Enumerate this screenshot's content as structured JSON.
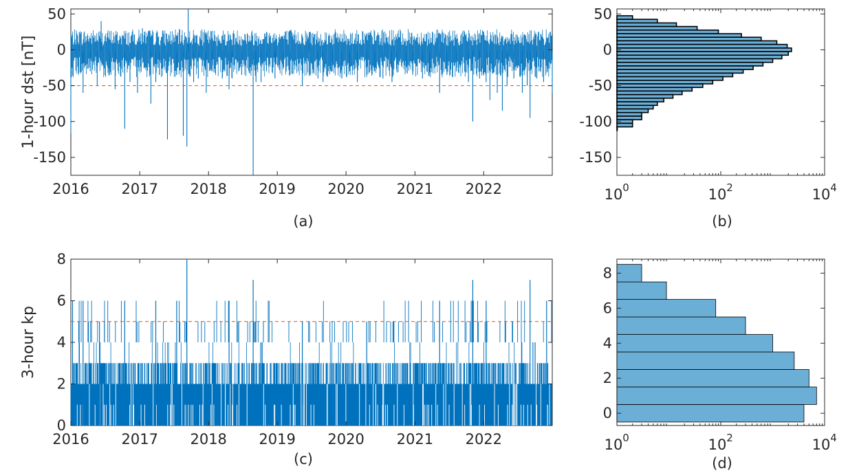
{
  "chart_data": [
    {
      "panel": "a",
      "caption": "(a)",
      "type": "line",
      "ylabel": "1-hour dst [nT]",
      "xlim": [
        "2016-01-01",
        "2022-12-31"
      ],
      "ylim": [
        -175,
        57
      ],
      "x_ticks": [
        "2016",
        "2017",
        "2018",
        "2019",
        "2020",
        "2021",
        "2022"
      ],
      "y_ticks": [
        50,
        0,
        -50,
        -100,
        -150
      ],
      "threshold": -50,
      "series_color": "#0072bd",
      "threshold_color": "#d95319",
      "series": {
        "x": [
          "2016-01-01",
          "2016-02-15",
          "2016-03-06",
          "2016-04-13",
          "2016-05-20",
          "2016-06-10",
          "2016-07-25",
          "2016-08-23",
          "2016-10-13",
          "2016-11-10",
          "2016-12-20",
          "2017-01-15",
          "2017-03-01",
          "2017-03-27",
          "2017-04-15",
          "2017-05-28",
          "2017-07-16",
          "2017-08-20",
          "2017-09-08",
          "2017-09-15",
          "2017-10-14",
          "2017-11-08",
          "2017-12-20",
          "2018-01-20",
          "2018-03-15",
          "2018-04-20",
          "2018-05-06",
          "2018-06-26",
          "2018-08-26",
          "2018-09-10",
          "2018-10-07",
          "2018-11-05",
          "2018-12-20",
          "2019-02-01",
          "2019-03-10",
          "2019-05-14",
          "2019-06-20",
          "2019-08-05",
          "2019-09-01",
          "2019-10-20",
          "2019-12-10",
          "2020-01-20",
          "2020-03-01",
          "2020-04-20",
          "2020-06-01",
          "2020-07-15",
          "2020-09-01",
          "2020-09-27",
          "2020-11-15",
          "2020-12-20",
          "2021-02-10",
          "2021-03-20",
          "2021-05-12",
          "2021-06-20",
          "2021-08-10",
          "2021-10-12",
          "2021-11-04",
          "2021-12-10",
          "2022-01-14",
          "2022-02-03",
          "2022-03-14",
          "2022-04-10",
          "2022-05-05",
          "2022-06-10",
          "2022-07-25",
          "2022-08-20",
          "2022-09-04",
          "2022-10-10",
          "2022-11-15",
          "2022-12-31"
        ],
        "y": [
          -116,
          25,
          -60,
          -30,
          -50,
          40,
          -35,
          -55,
          -110,
          -45,
          -60,
          30,
          -75,
          -45,
          -35,
          -125,
          -35,
          -120,
          -135,
          57,
          -45,
          -40,
          -60,
          -30,
          -40,
          -55,
          -40,
          -35,
          -175,
          -45,
          -45,
          -30,
          -40,
          -25,
          -35,
          -50,
          25,
          -40,
          -45,
          -30,
          -40,
          -30,
          -45,
          -35,
          -30,
          -40,
          -45,
          -30,
          -25,
          -35,
          -40,
          -30,
          -60,
          -35,
          -30,
          -45,
          -100,
          -40,
          -45,
          -70,
          -60,
          -85,
          -50,
          -40,
          -60,
          -50,
          -95,
          -40,
          -45,
          -60
        ]
      }
    },
    {
      "panel": "b",
      "caption": "(b)",
      "type": "bar",
      "orientation": "horizontal",
      "xscale": "log",
      "xlim": [
        1,
        10000
      ],
      "ylim": [
        -175,
        57
      ],
      "x_ticks": [
        "10^0",
        "10^2",
        "10^4"
      ],
      "y_ticks": [
        50,
        0,
        -50,
        -100,
        -150
      ],
      "bar_color": "#6baed6",
      "edge_color": "#000000",
      "bins": [
        45,
        40,
        35,
        30,
        25,
        20,
        15,
        10,
        5,
        0,
        -5,
        -10,
        -15,
        -20,
        -25,
        -30,
        -35,
        -40,
        -45,
        -50,
        -55,
        -60,
        -65,
        -70,
        -75,
        -80,
        -85,
        -90,
        -95,
        -100,
        -105,
        -110
      ],
      "values": [
        2,
        6,
        14,
        35,
        90,
        250,
        600,
        1200,
        1900,
        2300,
        2000,
        1500,
        1000,
        650,
        420,
        270,
        170,
        110,
        70,
        45,
        28,
        18,
        12,
        8,
        6,
        5,
        4,
        3,
        3,
        2,
        2,
        1
      ]
    },
    {
      "panel": "c",
      "caption": "(c)",
      "type": "bar",
      "ylabel": "3-hour kp",
      "xlim": [
        "2016-01-01",
        "2022-12-31"
      ],
      "ylim": [
        0,
        8
      ],
      "x_ticks": [
        "2016",
        "2017",
        "2018",
        "2019",
        "2020",
        "2021",
        "2022"
      ],
      "y_ticks": [
        0,
        2,
        4,
        6,
        8
      ],
      "threshold": 5,
      "series_color": "#0072bd",
      "threshold_color": "#d95319",
      "peaks": {
        "x": [
          "2016-01-10",
          "2016-03-06",
          "2016-06-01",
          "2016-10-13",
          "2017-03-27",
          "2017-07-16",
          "2017-09-08",
          "2018-04-20",
          "2018-08-26",
          "2019-05-14",
          "2020-04-20",
          "2021-05-12",
          "2021-11-04",
          "2022-01-14",
          "2022-09-04",
          "2022-12-01"
        ],
        "y": [
          6,
          6,
          5,
          6,
          6,
          6,
          8,
          6,
          7,
          5,
          5,
          6,
          7,
          6,
          7,
          6
        ]
      }
    },
    {
      "panel": "d",
      "caption": "(d)",
      "type": "bar",
      "orientation": "horizontal",
      "xscale": "log",
      "xlim": [
        1,
        10000
      ],
      "ylim": [
        -0.7,
        8.8
      ],
      "x_ticks": [
        "10^0",
        "10^2",
        "10^4"
      ],
      "y_ticks": [
        0,
        2,
        4,
        6,
        8
      ],
      "bar_color": "#6baed6",
      "edge_color": "#000000",
      "bins": [
        0,
        1,
        2,
        3,
        4,
        5,
        6,
        7,
        8
      ],
      "values": [
        4000,
        7000,
        5000,
        2600,
        1000,
        300,
        80,
        9,
        3
      ]
    }
  ]
}
